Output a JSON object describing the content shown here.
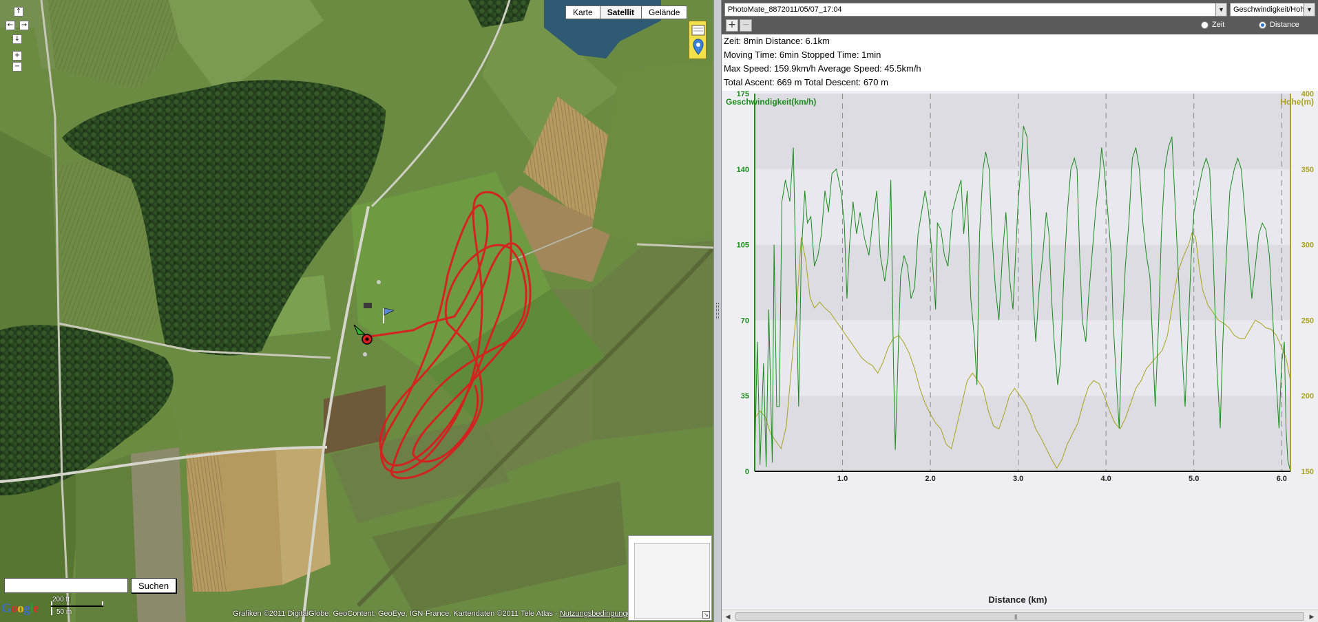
{
  "map": {
    "nav_buttons": {
      "up": "↑",
      "left": "←",
      "right": "→",
      "down": "↓",
      "zoom_in": "+",
      "zoom_out": "−"
    },
    "map_types": [
      "Karte",
      "Satellit",
      "Gelände"
    ],
    "active_map_type": "Satellit",
    "search": {
      "value": "",
      "button": "Suchen"
    },
    "logo": [
      "G",
      "o",
      "o",
      "g",
      "l",
      "e"
    ],
    "scale": {
      "top": "200 ft",
      "bottom": "50 m"
    },
    "copyright": "Grafiken ©2011 DigitalGlobe, GeoContent, GeoEye, IGN-France, Kartendaten ©2011 Tele Atlas - ",
    "terms_link": "Nutzungsbedingungen",
    "track_color": "#d81e1e"
  },
  "panel": {
    "track_select": {
      "value": "PhotoMate_8872011/05/07_17:04"
    },
    "metric_select": {
      "value": "Geschwindigkeit/Hoh"
    },
    "toolbar": {
      "add": "+",
      "remove": "−"
    },
    "axis_mode": {
      "options": [
        "Zeit",
        "Distance"
      ],
      "selected": "Distance"
    },
    "stats": [
      "Zeit: 8min   Distance: 6.1km",
      "Moving Time: 6min   Stopped Time: 1min",
      "Max Speed: 159.9km/h   Average Speed: 45.5km/h",
      "Total Ascent: 669 m   Total Descent: 670 m"
    ],
    "scrollbar": {
      "left": "◀",
      "right": "▶",
      "grip": "|||"
    }
  },
  "chart_data": {
    "type": "line",
    "xlabel": "Distance (km)",
    "ylabel_left": "Geschwindigkeit(km/h)",
    "ylabel_right": "Hohe(m)",
    "xlim": [
      0,
      6.1
    ],
    "ylim_left": [
      0,
      175
    ],
    "ylim_right": [
      150,
      400
    ],
    "x_ticks": [
      "1.0",
      "2.0",
      "3.0",
      "4.0",
      "5.0",
      "6.0"
    ],
    "y_ticks_left": [
      "0",
      "35",
      "70",
      "105",
      "140",
      "175"
    ],
    "y_ticks_right": [
      "150",
      "200",
      "250",
      "300",
      "350",
      "400"
    ],
    "colors": {
      "speed": "#1a8a1a",
      "elevation": "#a8a21a",
      "band": "#dcdce2",
      "band_alt": "#e8e8ee"
    },
    "series": [
      {
        "axis": "left",
        "values": [
          [
            0,
            5
          ],
          [
            0.03,
            60
          ],
          [
            0.06,
            3
          ],
          [
            0.1,
            50
          ],
          [
            0.13,
            2
          ],
          [
            0.16,
            75
          ],
          [
            0.2,
            4
          ],
          [
            0.22,
            105
          ],
          [
            0.25,
            30
          ],
          [
            0.28,
            30
          ],
          [
            0.31,
            125
          ],
          [
            0.35,
            135
          ],
          [
            0.4,
            125
          ],
          [
            0.44,
            150
          ],
          [
            0.47,
            90
          ],
          [
            0.5,
            30
          ],
          [
            0.53,
            100
          ],
          [
            0.57,
            130
          ],
          [
            0.6,
            115
          ],
          [
            0.64,
            118
          ],
          [
            0.68,
            95
          ],
          [
            0.72,
            100
          ],
          [
            0.76,
            110
          ],
          [
            0.8,
            130
          ],
          [
            0.84,
            120
          ],
          [
            0.88,
            138
          ],
          [
            0.93,
            140
          ],
          [
            0.98,
            130
          ],
          [
            1.02,
            115
          ],
          [
            1.05,
            80
          ],
          [
            1.08,
            105
          ],
          [
            1.12,
            125
          ],
          [
            1.16,
            110
          ],
          [
            1.2,
            120
          ],
          [
            1.25,
            108
          ],
          [
            1.3,
            100
          ],
          [
            1.35,
            118
          ],
          [
            1.39,
            130
          ],
          [
            1.43,
            100
          ],
          [
            1.48,
            88
          ],
          [
            1.52,
            100
          ],
          [
            1.55,
            135
          ],
          [
            1.58,
            50
          ],
          [
            1.6,
            10
          ],
          [
            1.63,
            50
          ],
          [
            1.66,
            90
          ],
          [
            1.7,
            100
          ],
          [
            1.74,
            95
          ],
          [
            1.78,
            80
          ],
          [
            1.82,
            85
          ],
          [
            1.86,
            110
          ],
          [
            1.9,
            120
          ],
          [
            1.94,
            130
          ],
          [
            1.98,
            120
          ],
          [
            2.02,
            100
          ],
          [
            2.06,
            75
          ],
          [
            2.08,
            115
          ],
          [
            2.12,
            112
          ],
          [
            2.16,
            100
          ],
          [
            2.2,
            95
          ],
          [
            2.25,
            120
          ],
          [
            2.3,
            128
          ],
          [
            2.35,
            135
          ],
          [
            2.38,
            110
          ],
          [
            2.42,
            130
          ],
          [
            2.46,
            80
          ],
          [
            2.5,
            62
          ],
          [
            2.53,
            40
          ],
          [
            2.56,
            110
          ],
          [
            2.6,
            140
          ],
          [
            2.63,
            148
          ],
          [
            2.67,
            140
          ],
          [
            2.7,
            110
          ],
          [
            2.74,
            85
          ],
          [
            2.78,
            70
          ],
          [
            2.82,
            100
          ],
          [
            2.86,
            120
          ],
          [
            2.9,
            90
          ],
          [
            2.94,
            75
          ],
          [
            2.97,
            100
          ],
          [
            3.0,
            125
          ],
          [
            3.03,
            140
          ],
          [
            3.06,
            160
          ],
          [
            3.1,
            155
          ],
          [
            3.14,
            120
          ],
          [
            3.17,
            80
          ],
          [
            3.2,
            60
          ],
          [
            3.24,
            85
          ],
          [
            3.28,
            100
          ],
          [
            3.32,
            120
          ],
          [
            3.35,
            110
          ],
          [
            3.38,
            80
          ],
          [
            3.41,
            60
          ],
          [
            3.45,
            40
          ],
          [
            3.48,
            50
          ],
          [
            3.52,
            90
          ],
          [
            3.56,
            120
          ],
          [
            3.6,
            140
          ],
          [
            3.64,
            145
          ],
          [
            3.67,
            140
          ],
          [
            3.7,
            100
          ],
          [
            3.73,
            70
          ],
          [
            3.77,
            60
          ],
          [
            3.8,
            80
          ],
          [
            3.84,
            100
          ],
          [
            3.88,
            120
          ],
          [
            3.92,
            135
          ],
          [
            3.95,
            150
          ],
          [
            3.98,
            140
          ],
          [
            4.02,
            120
          ],
          [
            4.06,
            100
          ],
          [
            4.08,
            70
          ],
          [
            4.12,
            40
          ],
          [
            4.15,
            20
          ],
          [
            4.18,
            60
          ],
          [
            4.22,
            95
          ],
          [
            4.26,
            115
          ],
          [
            4.3,
            145
          ],
          [
            4.34,
            150
          ],
          [
            4.38,
            140
          ],
          [
            4.42,
            115
          ],
          [
            4.46,
            100
          ],
          [
            4.5,
            90
          ],
          [
            4.53,
            60
          ],
          [
            4.56,
            30
          ],
          [
            4.6,
            70
          ],
          [
            4.63,
            110
          ],
          [
            4.67,
            140
          ],
          [
            4.71,
            150
          ],
          [
            4.75,
            155
          ],
          [
            4.78,
            130
          ],
          [
            4.82,
            95
          ],
          [
            4.86,
            60
          ],
          [
            4.9,
            30
          ],
          [
            4.93,
            60
          ],
          [
            4.97,
            100
          ],
          [
            5.0,
            120
          ],
          [
            5.05,
            130
          ],
          [
            5.1,
            140
          ],
          [
            5.14,
            145
          ],
          [
            5.18,
            140
          ],
          [
            5.22,
            100
          ],
          [
            5.26,
            50
          ],
          [
            5.3,
            20
          ],
          [
            5.33,
            60
          ],
          [
            5.37,
            100
          ],
          [
            5.41,
            130
          ],
          [
            5.46,
            140
          ],
          [
            5.5,
            145
          ],
          [
            5.54,
            140
          ],
          [
            5.58,
            120
          ],
          [
            5.62,
            100
          ],
          [
            5.66,
            80
          ],
          [
            5.7,
            95
          ],
          [
            5.74,
            110
          ],
          [
            5.78,
            115
          ],
          [
            5.82,
            112
          ],
          [
            5.86,
            100
          ],
          [
            5.9,
            70
          ],
          [
            5.94,
            40
          ],
          [
            5.97,
            20
          ],
          [
            6.0,
            50
          ],
          [
            6.03,
            60
          ],
          [
            6.05,
            20
          ],
          [
            6.07,
            5
          ],
          [
            6.1,
            0
          ]
        ]
      },
      {
        "axis": "right",
        "values": [
          [
            0,
            185
          ],
          [
            0.06,
            190
          ],
          [
            0.12,
            186
          ],
          [
            0.18,
            175
          ],
          [
            0.24,
            170
          ],
          [
            0.3,
            165
          ],
          [
            0.36,
            180
          ],
          [
            0.42,
            220
          ],
          [
            0.48,
            260
          ],
          [
            0.53,
            305
          ],
          [
            0.58,
            290
          ],
          [
            0.63,
            265
          ],
          [
            0.68,
            258
          ],
          [
            0.74,
            262
          ],
          [
            0.8,
            258
          ],
          [
            0.86,
            255
          ],
          [
            0.92,
            250
          ],
          [
            0.98,
            245
          ],
          [
            1.04,
            240
          ],
          [
            1.1,
            235
          ],
          [
            1.16,
            230
          ],
          [
            1.22,
            225
          ],
          [
            1.28,
            222
          ],
          [
            1.34,
            220
          ],
          [
            1.4,
            215
          ],
          [
            1.46,
            222
          ],
          [
            1.52,
            232
          ],
          [
            1.58,
            238
          ],
          [
            1.64,
            240
          ],
          [
            1.7,
            235
          ],
          [
            1.76,
            228
          ],
          [
            1.82,
            218
          ],
          [
            1.88,
            205
          ],
          [
            1.94,
            195
          ],
          [
            2.0,
            188
          ],
          [
            2.06,
            182
          ],
          [
            2.12,
            178
          ],
          [
            2.18,
            168
          ],
          [
            2.24,
            165
          ],
          [
            2.3,
            180
          ],
          [
            2.36,
            195
          ],
          [
            2.42,
            210
          ],
          [
            2.48,
            215
          ],
          [
            2.54,
            210
          ],
          [
            2.6,
            205
          ],
          [
            2.66,
            190
          ],
          [
            2.72,
            180
          ],
          [
            2.78,
            178
          ],
          [
            2.84,
            188
          ],
          [
            2.9,
            200
          ],
          [
            2.96,
            205
          ],
          [
            3.02,
            200
          ],
          [
            3.08,
            195
          ],
          [
            3.14,
            188
          ],
          [
            3.2,
            178
          ],
          [
            3.26,
            172
          ],
          [
            3.32,
            165
          ],
          [
            3.38,
            158
          ],
          [
            3.44,
            152
          ],
          [
            3.5,
            158
          ],
          [
            3.56,
            168
          ],
          [
            3.62,
            175
          ],
          [
            3.68,
            182
          ],
          [
            3.74,
            195
          ],
          [
            3.8,
            206
          ],
          [
            3.86,
            210
          ],
          [
            3.92,
            208
          ],
          [
            3.98,
            200
          ],
          [
            4.04,
            190
          ],
          [
            4.1,
            182
          ],
          [
            4.16,
            178
          ],
          [
            4.22,
            185
          ],
          [
            4.28,
            195
          ],
          [
            4.34,
            205
          ],
          [
            4.4,
            210
          ],
          [
            4.46,
            218
          ],
          [
            4.52,
            222
          ],
          [
            4.58,
            226
          ],
          [
            4.64,
            230
          ],
          [
            4.7,
            240
          ],
          [
            4.76,
            262
          ],
          [
            4.82,
            282
          ],
          [
            4.88,
            292
          ],
          [
            4.94,
            300
          ],
          [
            4.98,
            308
          ],
          [
            5.02,
            305
          ],
          [
            5.06,
            285
          ],
          [
            5.1,
            270
          ],
          [
            5.16,
            260
          ],
          [
            5.22,
            255
          ],
          [
            5.28,
            250
          ],
          [
            5.34,
            248
          ],
          [
            5.4,
            245
          ],
          [
            5.46,
            240
          ],
          [
            5.52,
            238
          ],
          [
            5.58,
            238
          ],
          [
            5.64,
            244
          ],
          [
            5.7,
            250
          ],
          [
            5.76,
            248
          ],
          [
            5.82,
            245
          ],
          [
            5.88,
            244
          ],
          [
            5.94,
            240
          ],
          [
            6.0,
            232
          ],
          [
            6.05,
            225
          ],
          [
            6.1,
            210
          ]
        ]
      }
    ]
  }
}
